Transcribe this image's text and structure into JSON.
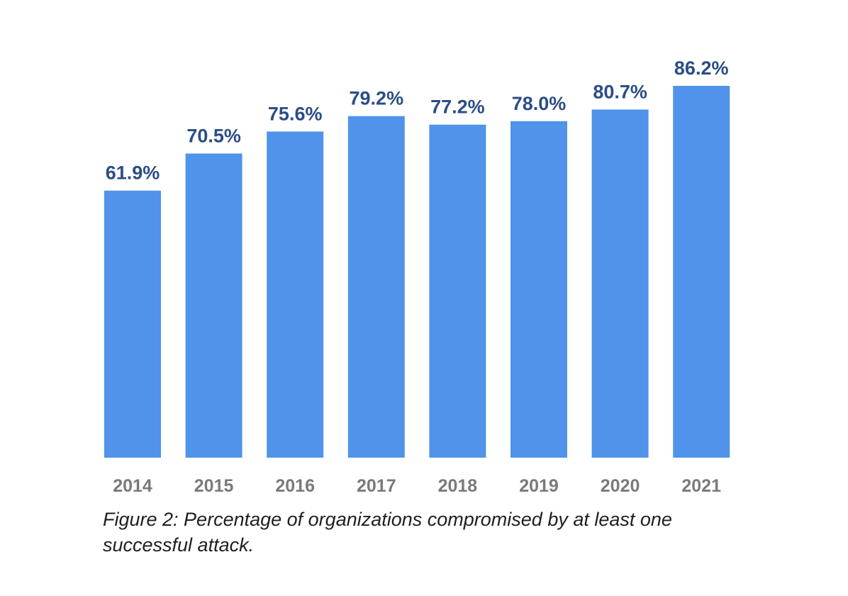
{
  "chart_data": {
    "type": "bar",
    "categories": [
      "2014",
      "2015",
      "2016",
      "2017",
      "2018",
      "2019",
      "2020",
      "2021"
    ],
    "values": [
      61.9,
      70.5,
      75.6,
      79.2,
      77.2,
      78.0,
      80.7,
      86.2
    ],
    "value_labels": [
      "61.9%",
      "70.5%",
      "75.6%",
      "79.2%",
      "77.2%",
      "78.0%",
      "80.7%",
      "86.2%"
    ],
    "title": "",
    "xlabel": "",
    "ylabel": "",
    "ylim": [
      0,
      86.2
    ],
    "grid": false,
    "legend": "none",
    "colors": {
      "bar": "#4f93ea",
      "value_label": "#2b4d86",
      "tick_label": "#7a7a7a"
    }
  },
  "caption": "Figure 2: Percentage of organizations compromised by at least one successful attack."
}
